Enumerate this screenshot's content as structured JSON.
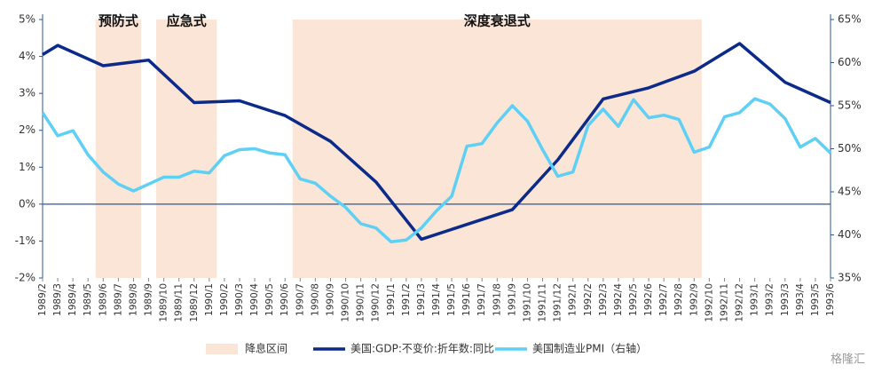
{
  "chart_data": {
    "type": "line",
    "categories": [
      "1989/2",
      "1989/3",
      "1989/4",
      "1989/5",
      "1989/6",
      "1989/7",
      "1989/8",
      "1989/9",
      "1989/10",
      "1989/11",
      "1989/12",
      "1990/1",
      "1990/2",
      "1990/3",
      "1990/4",
      "1990/5",
      "1990/6",
      "1990/7",
      "1990/8",
      "1990/9",
      "1990/10",
      "1990/11",
      "1990/12",
      "1991/1",
      "1991/2",
      "1991/3",
      "1991/4",
      "1991/5",
      "1991/6",
      "1991/7",
      "1991/8",
      "1991/9",
      "1991/10",
      "1991/11",
      "1991/12",
      "1992/1",
      "1992/2",
      "1992/3",
      "1992/4",
      "1992/5",
      "1992/6",
      "1992/7",
      "1992/8",
      "1992/9",
      "1992/10",
      "1992/11",
      "1992/12",
      "1993/1",
      "1993/2",
      "1993/3",
      "1993/4",
      "1993/5",
      "1993/6"
    ],
    "series": [
      {
        "name": "美国:GDP:不变价:折年数:同比",
        "color": "#0b2a8a",
        "axis": "y",
        "x": [
          "1989/2",
          "1989/3",
          "1989/6",
          "1989/9",
          "1989/12",
          "1990/3",
          "1990/6",
          "1990/9",
          "1990/12",
          "1991/3",
          "1991/6",
          "1991/9",
          "1991/12",
          "1992/3",
          "1992/6",
          "1992/9",
          "1992/12",
          "1993/3",
          "1993/6"
        ],
        "values": [
          4.05,
          4.3,
          3.75,
          3.9,
          2.75,
          2.8,
          2.4,
          1.7,
          0.6,
          -0.95,
          -0.55,
          -0.15,
          1.2,
          2.85,
          3.15,
          3.6,
          4.35,
          3.3,
          2.75
        ]
      },
      {
        "name": "美国制造业PMI（右轴）",
        "color": "#5fd0f5",
        "axis": "y2",
        "values": [
          54.2,
          51.5,
          52.1,
          49.3,
          47.3,
          45.9,
          45.1,
          45.9,
          46.7,
          46.7,
          47.4,
          47.2,
          49.2,
          49.9,
          50.0,
          49.5,
          49.3,
          46.5,
          46.0,
          44.5,
          43.2,
          41.3,
          40.8,
          39.2,
          39.4,
          40.8,
          42.8,
          44.5,
          50.3,
          50.6,
          53.0,
          55.0,
          53.2,
          49.9,
          46.8,
          47.3,
          52.7,
          54.6,
          52.6,
          55.7,
          53.6,
          53.9,
          53.4,
          49.6,
          50.2,
          53.7,
          54.2,
          55.8,
          55.2,
          53.5,
          50.2,
          51.2,
          49.5
        ]
      }
    ],
    "bands": {
      "name": "降息区间",
      "color": "#fbe5d6",
      "items": [
        {
          "label": "预防式",
          "start": "1989/6",
          "end": "1989/8"
        },
        {
          "label": "应急式",
          "start": "1989/10",
          "end": "1990/1"
        },
        {
          "label": "深度衰退式",
          "start": "1990/7",
          "end": "1992/9"
        }
      ]
    },
    "ylim": [
      -2,
      5
    ],
    "yticks": [
      {
        "value": -2,
        "label": "-2%"
      },
      {
        "value": -1,
        "label": "-1%"
      },
      {
        "value": 0,
        "label": "0%"
      },
      {
        "value": 1,
        "label": "1%"
      },
      {
        "value": 2,
        "label": "2%"
      },
      {
        "value": 3,
        "label": "3%"
      },
      {
        "value": 4,
        "label": "4%"
      },
      {
        "value": 5,
        "label": "5%"
      }
    ],
    "y2lim": [
      35,
      65
    ],
    "y2ticks": [
      {
        "value": 35,
        "label": "35%"
      },
      {
        "value": 40,
        "label": "40%"
      },
      {
        "value": 45,
        "label": "45%"
      },
      {
        "value": 50,
        "label": "50%"
      },
      {
        "value": 55,
        "label": "55%"
      },
      {
        "value": 60,
        "label": "60%"
      },
      {
        "value": 65,
        "label": "65%"
      }
    ],
    "watermark": "格隆汇"
  }
}
